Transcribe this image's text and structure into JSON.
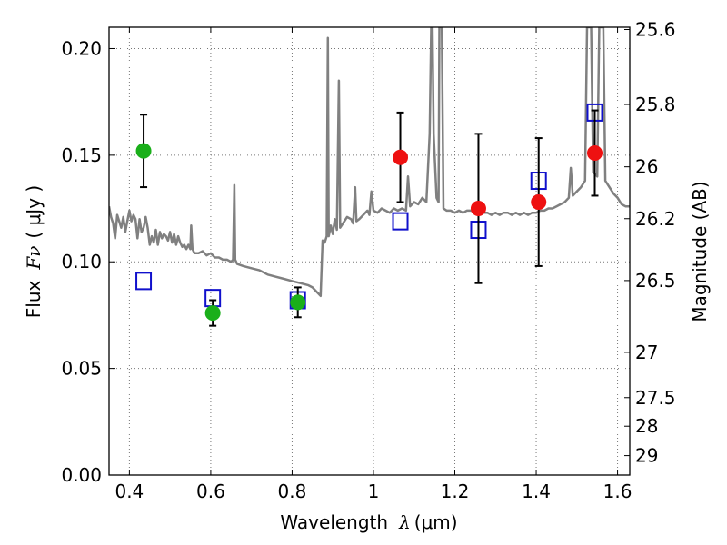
{
  "chart_data": {
    "type": "scatter",
    "xlabel_prefix": "Wavelength",
    "xlabel_symbol": "λ",
    "xlabel_unit": "(μm)",
    "ylabel_prefix": "Flux",
    "ylabel_symbol": "Fν",
    "ylabel_unit": "( μJy )",
    "y2label": "Magnitude (AB)",
    "xlim": [
      0.35,
      1.63
    ],
    "ylim": [
      0.0,
      0.21
    ],
    "grid": true,
    "x_ticks": [
      {
        "v": 0.4,
        "label": "0.4"
      },
      {
        "v": 0.6,
        "label": "0.6"
      },
      {
        "v": 0.8,
        "label": "0.8"
      },
      {
        "v": 1.0,
        "label": "1"
      },
      {
        "v": 1.2,
        "label": "1.2"
      },
      {
        "v": 1.4,
        "label": "1.4"
      },
      {
        "v": 1.6,
        "label": "1.6"
      }
    ],
    "y_ticks": [
      {
        "v": 0.0,
        "label": "0.00"
      },
      {
        "v": 0.05,
        "label": "0.05"
      },
      {
        "v": 0.1,
        "label": "0.10"
      },
      {
        "v": 0.15,
        "label": "0.15"
      },
      {
        "v": 0.2,
        "label": "0.20"
      }
    ],
    "y2_ticks": [
      {
        "mag": 25.6,
        "label": "25.6"
      },
      {
        "mag": 25.8,
        "label": "25.8"
      },
      {
        "mag": 26.0,
        "label": "26"
      },
      {
        "mag": 26.2,
        "label": "26.2"
      },
      {
        "mag": 26.5,
        "label": "26.5"
      },
      {
        "mag": 27.0,
        "label": "27"
      },
      {
        "mag": 27.5,
        "label": "27.5"
      },
      {
        "mag": 28.0,
        "label": "28"
      },
      {
        "mag": 29.0,
        "label": "29"
      }
    ],
    "colors": {
      "green": "#1aaf1a",
      "red": "#ee1111",
      "model": "#1010cc",
      "spectrum": "#808080",
      "errorbar": "#000000"
    },
    "series": [
      {
        "marker": "green-circle",
        "points": [
          {
            "x": 0.435,
            "y": 0.152,
            "yerr": 0.017
          },
          {
            "x": 0.605,
            "y": 0.076,
            "yerr": 0.006
          },
          {
            "x": 0.814,
            "y": 0.081,
            "yerr": 0.007
          }
        ]
      },
      {
        "marker": "red-circle",
        "points": [
          {
            "x": 1.066,
            "y": 0.149,
            "yerr": 0.021
          },
          {
            "x": 1.258,
            "y": 0.125,
            "yerr": 0.035
          },
          {
            "x": 1.406,
            "y": 0.128,
            "yerr": 0.03
          },
          {
            "x": 1.544,
            "y": 0.151,
            "yerr": 0.02
          }
        ]
      },
      {
        "marker": "blue-open-square",
        "points": [
          {
            "x": 0.435,
            "y": 0.091
          },
          {
            "x": 0.605,
            "y": 0.083
          },
          {
            "x": 0.814,
            "y": 0.082
          },
          {
            "x": 1.066,
            "y": 0.119
          },
          {
            "x": 1.258,
            "y": 0.115
          },
          {
            "x": 1.406,
            "y": 0.138
          },
          {
            "x": 1.544,
            "y": 0.17
          }
        ]
      }
    ],
    "spectrum": [
      [
        0.35,
        0.126
      ],
      [
        0.355,
        0.121
      ],
      [
        0.36,
        0.118
      ],
      [
        0.365,
        0.111
      ],
      [
        0.37,
        0.122
      ],
      [
        0.375,
        0.119
      ],
      [
        0.38,
        0.116
      ],
      [
        0.385,
        0.121
      ],
      [
        0.39,
        0.114
      ],
      [
        0.395,
        0.119
      ],
      [
        0.4,
        0.124
      ],
      [
        0.405,
        0.119
      ],
      [
        0.41,
        0.122
      ],
      [
        0.415,
        0.12
      ],
      [
        0.42,
        0.111
      ],
      [
        0.425,
        0.12
      ],
      [
        0.43,
        0.114
      ],
      [
        0.435,
        0.116
      ],
      [
        0.44,
        0.121
      ],
      [
        0.445,
        0.116
      ],
      [
        0.45,
        0.108
      ],
      [
        0.455,
        0.112
      ],
      [
        0.46,
        0.109
      ],
      [
        0.465,
        0.115
      ],
      [
        0.47,
        0.108
      ],
      [
        0.475,
        0.114
      ],
      [
        0.48,
        0.111
      ],
      [
        0.485,
        0.113
      ],
      [
        0.49,
        0.112
      ],
      [
        0.495,
        0.11
      ],
      [
        0.5,
        0.114
      ],
      [
        0.505,
        0.109
      ],
      [
        0.51,
        0.113
      ],
      [
        0.515,
        0.108
      ],
      [
        0.52,
        0.112
      ],
      [
        0.525,
        0.109
      ],
      [
        0.53,
        0.107
      ],
      [
        0.535,
        0.108
      ],
      [
        0.54,
        0.106
      ],
      [
        0.545,
        0.108
      ],
      [
        0.55,
        0.106
      ],
      [
        0.552,
        0.117
      ],
      [
        0.555,
        0.106
      ],
      [
        0.56,
        0.104
      ],
      [
        0.57,
        0.104
      ],
      [
        0.58,
        0.105
      ],
      [
        0.59,
        0.103
      ],
      [
        0.6,
        0.104
      ],
      [
        0.61,
        0.102
      ],
      [
        0.62,
        0.102
      ],
      [
        0.63,
        0.101
      ],
      [
        0.64,
        0.101
      ],
      [
        0.65,
        0.1
      ],
      [
        0.655,
        0.101
      ],
      [
        0.658,
        0.136
      ],
      [
        0.66,
        0.101
      ],
      [
        0.665,
        0.099
      ],
      [
        0.68,
        0.098
      ],
      [
        0.7,
        0.097
      ],
      [
        0.72,
        0.096
      ],
      [
        0.74,
        0.094
      ],
      [
        0.76,
        0.093
      ],
      [
        0.78,
        0.092
      ],
      [
        0.8,
        0.091
      ],
      [
        0.82,
        0.09
      ],
      [
        0.84,
        0.089
      ],
      [
        0.85,
        0.088
      ],
      [
        0.86,
        0.086
      ],
      [
        0.87,
        0.084
      ],
      [
        0.875,
        0.11
      ],
      [
        0.88,
        0.109
      ],
      [
        0.885,
        0.112
      ],
      [
        0.888,
        0.205
      ],
      [
        0.89,
        0.112
      ],
      [
        0.895,
        0.117
      ],
      [
        0.9,
        0.113
      ],
      [
        0.905,
        0.12
      ],
      [
        0.91,
        0.115
      ],
      [
        0.915,
        0.185
      ],
      [
        0.918,
        0.116
      ],
      [
        0.925,
        0.118
      ],
      [
        0.935,
        0.121
      ],
      [
        0.945,
        0.12
      ],
      [
        0.95,
        0.118
      ],
      [
        0.955,
        0.135
      ],
      [
        0.958,
        0.119
      ],
      [
        0.965,
        0.12
      ],
      [
        0.975,
        0.122
      ],
      [
        0.985,
        0.124
      ],
      [
        0.99,
        0.122
      ],
      [
        0.995,
        0.133
      ],
      [
        1.0,
        0.124
      ],
      [
        1.01,
        0.123
      ],
      [
        1.02,
        0.125
      ],
      [
        1.03,
        0.124
      ],
      [
        1.04,
        0.123
      ],
      [
        1.05,
        0.125
      ],
      [
        1.06,
        0.124
      ],
      [
        1.07,
        0.125
      ],
      [
        1.08,
        0.124
      ],
      [
        1.085,
        0.14
      ],
      [
        1.09,
        0.126
      ],
      [
        1.1,
        0.128
      ],
      [
        1.11,
        0.127
      ],
      [
        1.12,
        0.13
      ],
      [
        1.13,
        0.128
      ],
      [
        1.138,
        0.16
      ],
      [
        1.142,
        0.21
      ],
      [
        1.145,
        0.21
      ],
      [
        1.148,
        0.16
      ],
      [
        1.155,
        0.13
      ],
      [
        1.16,
        0.128
      ],
      [
        1.162,
        0.21
      ],
      [
        1.168,
        0.21
      ],
      [
        1.172,
        0.125
      ],
      [
        1.18,
        0.124
      ],
      [
        1.19,
        0.124
      ],
      [
        1.2,
        0.123
      ],
      [
        1.21,
        0.124
      ],
      [
        1.22,
        0.123
      ],
      [
        1.23,
        0.124
      ],
      [
        1.24,
        0.124
      ],
      [
        1.25,
        0.123
      ],
      [
        1.26,
        0.124
      ],
      [
        1.27,
        0.123
      ],
      [
        1.28,
        0.123
      ],
      [
        1.29,
        0.122
      ],
      [
        1.3,
        0.123
      ],
      [
        1.31,
        0.122
      ],
      [
        1.32,
        0.123
      ],
      [
        1.33,
        0.123
      ],
      [
        1.34,
        0.122
      ],
      [
        1.35,
        0.123
      ],
      [
        1.36,
        0.122
      ],
      [
        1.37,
        0.123
      ],
      [
        1.38,
        0.122
      ],
      [
        1.39,
        0.123
      ],
      [
        1.4,
        0.123
      ],
      [
        1.41,
        0.124
      ],
      [
        1.42,
        0.124
      ],
      [
        1.43,
        0.125
      ],
      [
        1.44,
        0.125
      ],
      [
        1.45,
        0.126
      ],
      [
        1.46,
        0.127
      ],
      [
        1.47,
        0.128
      ],
      [
        1.48,
        0.13
      ],
      [
        1.485,
        0.144
      ],
      [
        1.49,
        0.131
      ],
      [
        1.5,
        0.133
      ],
      [
        1.51,
        0.135
      ],
      [
        1.52,
        0.138
      ],
      [
        1.525,
        0.21
      ],
      [
        1.535,
        0.21
      ],
      [
        1.54,
        0.142
      ],
      [
        1.55,
        0.14
      ],
      [
        1.555,
        0.21
      ],
      [
        1.565,
        0.21
      ],
      [
        1.57,
        0.138
      ],
      [
        1.58,
        0.135
      ],
      [
        1.59,
        0.132
      ],
      [
        1.6,
        0.13
      ],
      [
        1.61,
        0.127
      ],
      [
        1.62,
        0.126
      ],
      [
        1.63,
        0.126
      ]
    ]
  }
}
